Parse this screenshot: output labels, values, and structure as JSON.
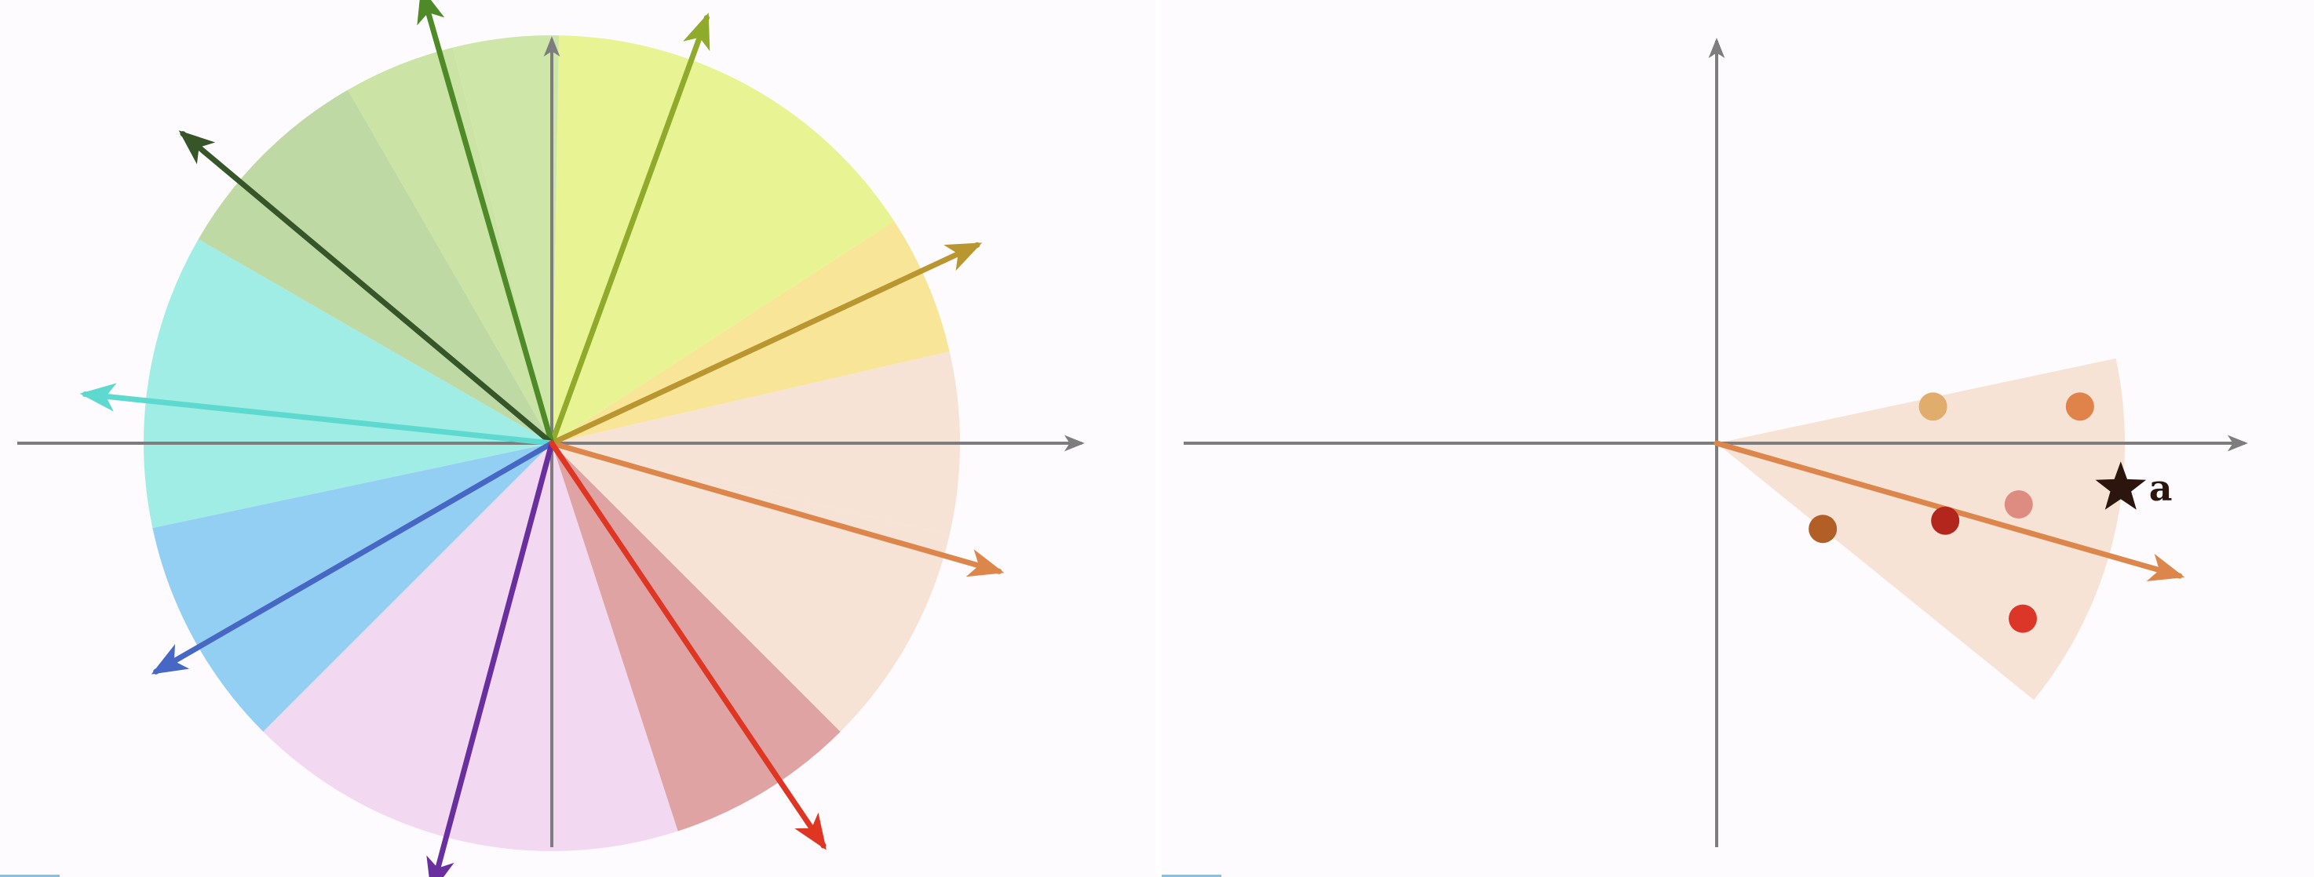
{
  "left_diagram": {
    "axis_color": "#7d7d7d",
    "sectors": [
      {
        "name": "sector-east",
        "from_deg": -13,
        "to_deg": 13,
        "color": "#f6e3d5"
      },
      {
        "name": "sector-east-northeast",
        "from_deg": 13,
        "to_deg": 33,
        "color": "#f8e597"
      },
      {
        "name": "sector-northeast",
        "from_deg": 33,
        "to_deg": 89,
        "color": "#e8f493"
      },
      {
        "name": "sector-north",
        "from_deg": 89,
        "to_deg": 104,
        "color": "#cfe6a9"
      },
      {
        "name": "sector-north-northwest",
        "from_deg": 104,
        "to_deg": 120,
        "color": "#cbe4a6"
      },
      {
        "name": "sector-northwest",
        "from_deg": 120,
        "to_deg": 150,
        "color": "#bfd9a5"
      },
      {
        "name": "sector-west",
        "from_deg": 150,
        "to_deg": 192,
        "color": "#a0ede5"
      },
      {
        "name": "sector-southwest",
        "from_deg": 192,
        "to_deg": 225,
        "color": "#93cff2"
      },
      {
        "name": "sector-south",
        "from_deg": 225,
        "to_deg": 288,
        "color": "#f2d8f1"
      },
      {
        "name": "sector-south-southeast",
        "from_deg": 288,
        "to_deg": 315,
        "color": "#dfa3a3"
      },
      {
        "name": "sector-southeast",
        "from_deg": 315,
        "to_deg": 347,
        "color": "#f6e3d5"
      }
    ],
    "vectors": [
      {
        "name": "vector-orange",
        "angle_deg": -16,
        "length": 1.14,
        "color": "#dd864b"
      },
      {
        "name": "vector-gold",
        "angle_deg": 25,
        "length": 1.15,
        "color": "#b9962f"
      },
      {
        "name": "vector-olive",
        "angle_deg": 70,
        "length": 1.11,
        "color": "#90aa2c"
      },
      {
        "name": "vector-green",
        "angle_deg": 106,
        "length": 1.15,
        "color": "#4f8a28"
      },
      {
        "name": "vector-dark-green",
        "angle_deg": 140,
        "length": 1.18,
        "color": "#36562a"
      },
      {
        "name": "vector-cyan",
        "angle_deg": 174,
        "length": 1.15,
        "color": "#5ed9d0"
      },
      {
        "name": "vector-blue",
        "angle_deg": 210,
        "length": 1.12,
        "color": "#4667c4"
      },
      {
        "name": "vector-purple",
        "angle_deg": 255,
        "length": 1.13,
        "color": "#6a2f9f"
      },
      {
        "name": "vector-red",
        "angle_deg": 304,
        "length": 1.19,
        "color": "#df3623"
      }
    ]
  },
  "right_diagram": {
    "axis_color": "#7d7d7d",
    "wedge": {
      "from_deg": -39,
      "to_deg": 12,
      "radius": 1.0,
      "color": "#f6e3d5"
    },
    "vector": {
      "angle_deg": -16,
      "length": 1.18,
      "color": "#dd864b"
    },
    "points": [
      {
        "name": "point-tan",
        "x": 0.53,
        "y": 0.09,
        "color": "#e1ad6c"
      },
      {
        "name": "point-orange",
        "x": 0.89,
        "y": 0.09,
        "color": "#e0834b"
      },
      {
        "name": "point-pink",
        "x": 0.74,
        "y": -0.15,
        "color": "#de8c82"
      },
      {
        "name": "point-dark-red",
        "x": 0.56,
        "y": -0.19,
        "color": "#b3261d"
      },
      {
        "name": "point-brown",
        "x": 0.26,
        "y": -0.21,
        "color": "#b25e27"
      },
      {
        "name": "point-red",
        "x": 0.75,
        "y": -0.43,
        "color": "#dc3628"
      }
    ],
    "star": {
      "name": "star-a",
      "x": 0.99,
      "y": -0.11,
      "color": "#2b150c",
      "label": "a"
    }
  }
}
